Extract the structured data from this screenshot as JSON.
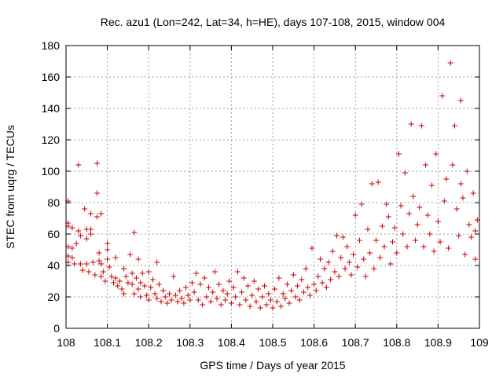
{
  "chart_data": {
    "type": "scatter",
    "title": "Rec. azu1 (Lon=242, Lat=34, h=HE), days 107-108, 2015, window 004",
    "xlabel": "GPS time / Days of year 2015",
    "ylabel": "STEC from uqrg / TECUs",
    "xlim": [
      108,
      109
    ],
    "ylim": [
      0,
      180
    ],
    "xticks": [
      "108",
      "108.1",
      "108.2",
      "108.3",
      "108.4",
      "108.5",
      "108.6",
      "108.7",
      "108.8",
      "108.9",
      "109"
    ],
    "yticks": [
      "0",
      "20",
      "40",
      "60",
      "80",
      "100",
      "120",
      "140",
      "160",
      "180"
    ],
    "grid": true,
    "marker": "plus",
    "color": "#cc0000",
    "series": [
      {
        "points": [
          [
            108.005,
            81
          ],
          [
            108.005,
            67
          ],
          [
            108.005,
            65
          ],
          [
            108.005,
            52
          ],
          [
            108.005,
            46
          ],
          [
            108.005,
            42
          ],
          [
            108.015,
            64
          ],
          [
            108.015,
            51
          ],
          [
            108.015,
            45
          ],
          [
            108.02,
            41
          ],
          [
            108.025,
            54
          ],
          [
            108.03,
            104
          ],
          [
            108.03,
            62
          ],
          [
            108.035,
            59
          ],
          [
            108.035,
            41
          ],
          [
            108.04,
            37
          ],
          [
            108.045,
            76
          ],
          [
            108.05,
            63
          ],
          [
            108.05,
            57
          ],
          [
            108.05,
            41
          ],
          [
            108.055,
            36
          ],
          [
            108.06,
            73
          ],
          [
            108.06,
            63
          ],
          [
            108.06,
            60
          ],
          [
            108.065,
            42
          ],
          [
            108.07,
            34
          ],
          [
            108.075,
            105
          ],
          [
            108.075,
            86
          ],
          [
            108.075,
            71
          ],
          [
            108.08,
            48
          ],
          [
            108.08,
            43
          ],
          [
            108.085,
            73
          ],
          [
            108.085,
            41
          ],
          [
            108.085,
            33
          ],
          [
            108.09,
            36
          ],
          [
            108.095,
            30
          ],
          [
            108.1,
            54
          ],
          [
            108.1,
            50
          ],
          [
            108.1,
            44
          ],
          [
            108.105,
            39
          ],
          [
            108.11,
            33
          ],
          [
            108.115,
            29
          ],
          [
            108.12,
            45
          ],
          [
            108.12,
            32
          ],
          [
            108.125,
            27
          ],
          [
            108.13,
            30
          ],
          [
            108.135,
            25
          ],
          [
            108.14,
            38
          ],
          [
            108.14,
            22
          ],
          [
            108.145,
            33
          ],
          [
            108.15,
            29
          ],
          [
            108.155,
            47
          ],
          [
            108.16,
            35
          ],
          [
            108.16,
            28
          ],
          [
            108.165,
            61
          ],
          [
            108.165,
            22
          ],
          [
            108.17,
            32
          ],
          [
            108.175,
            44
          ],
          [
            108.175,
            25
          ],
          [
            108.18,
            20
          ],
          [
            108.18,
            29
          ],
          [
            108.185,
            35
          ],
          [
            108.19,
            27
          ],
          [
            108.195,
            21
          ],
          [
            108.2,
            36
          ],
          [
            108.2,
            18
          ],
          [
            108.205,
            26
          ],
          [
            108.21,
            31
          ],
          [
            108.215,
            22
          ],
          [
            108.22,
            42
          ],
          [
            108.22,
            19
          ],
          [
            108.225,
            28
          ],
          [
            108.23,
            17
          ],
          [
            108.235,
            24
          ],
          [
            108.24,
            20
          ],
          [
            108.245,
            16
          ],
          [
            108.25,
            22
          ],
          [
            108.255,
            18
          ],
          [
            108.26,
            33
          ],
          [
            108.265,
            21
          ],
          [
            108.27,
            17
          ],
          [
            108.275,
            24
          ],
          [
            108.28,
            19
          ],
          [
            108.285,
            16
          ],
          [
            108.29,
            26
          ],
          [
            108.295,
            21
          ],
          [
            108.3,
            18
          ],
          [
            108.305,
            29
          ],
          [
            108.31,
            23
          ],
          [
            108.315,
            35
          ],
          [
            108.32,
            18
          ],
          [
            108.325,
            28
          ],
          [
            108.33,
            15
          ],
          [
            108.335,
            32
          ],
          [
            108.34,
            20
          ],
          [
            108.345,
            26
          ],
          [
            108.35,
            17
          ],
          [
            108.355,
            23
          ],
          [
            108.36,
            36
          ],
          [
            108.365,
            19
          ],
          [
            108.37,
            28
          ],
          [
            108.375,
            15
          ],
          [
            108.38,
            24
          ],
          [
            108.385,
            18
          ],
          [
            108.39,
            22
          ],
          [
            108.395,
            30
          ],
          [
            108.4,
            16
          ],
          [
            108.405,
            26
          ],
          [
            108.41,
            20
          ],
          [
            108.415,
            36
          ],
          [
            108.42,
            15
          ],
          [
            108.425,
            23
          ],
          [
            108.43,
            32
          ],
          [
            108.435,
            18
          ],
          [
            108.44,
            27
          ],
          [
            108.445,
            14
          ],
          [
            108.45,
            21
          ],
          [
            108.455,
            30
          ],
          [
            108.46,
            17
          ],
          [
            108.465,
            25
          ],
          [
            108.47,
            13
          ],
          [
            108.475,
            20
          ],
          [
            108.48,
            27
          ],
          [
            108.485,
            15
          ],
          [
            108.49,
            22
          ],
          [
            108.495,
            18
          ],
          [
            108.5,
            13
          ],
          [
            108.505,
            25
          ],
          [
            108.51,
            17
          ],
          [
            108.515,
            32
          ],
          [
            108.52,
            14
          ],
          [
            108.525,
            22
          ],
          [
            108.53,
            19
          ],
          [
            108.535,
            28
          ],
          [
            108.54,
            16
          ],
          [
            108.545,
            24
          ],
          [
            108.55,
            34
          ],
          [
            108.555,
            20
          ],
          [
            108.56,
            27
          ],
          [
            108.565,
            18
          ],
          [
            108.57,
            31
          ],
          [
            108.575,
            23
          ],
          [
            108.58,
            38
          ],
          [
            108.585,
            26
          ],
          [
            108.59,
            21
          ],
          [
            108.595,
            51
          ],
          [
            108.6,
            28
          ],
          [
            108.605,
            24
          ],
          [
            108.61,
            33
          ],
          [
            108.615,
            44
          ],
          [
            108.62,
            29
          ],
          [
            108.625,
            38
          ],
          [
            108.63,
            26
          ],
          [
            108.635,
            42
          ],
          [
            108.64,
            31
          ],
          [
            108.645,
            49
          ],
          [
            108.65,
            36
          ],
          [
            108.655,
            59
          ],
          [
            108.66,
            33
          ],
          [
            108.665,
            45
          ],
          [
            108.67,
            58
          ],
          [
            108.675,
            38
          ],
          [
            108.68,
            52
          ],
          [
            108.685,
            42
          ],
          [
            108.69,
            34
          ],
          [
            108.695,
            47
          ],
          [
            108.7,
            72
          ],
          [
            108.705,
            39
          ],
          [
            108.71,
            56
          ],
          [
            108.715,
            79
          ],
          [
            108.72,
            44
          ],
          [
            108.725,
            33
          ],
          [
            108.73,
            63
          ],
          [
            108.735,
            48
          ],
          [
            108.74,
            92
          ],
          [
            108.745,
            38
          ],
          [
            108.75,
            56
          ],
          [
            108.755,
            93
          ],
          [
            108.76,
            45
          ],
          [
            108.765,
            65
          ],
          [
            108.77,
            52
          ],
          [
            108.775,
            79
          ],
          [
            108.78,
            71
          ],
          [
            108.785,
            41
          ],
          [
            108.79,
            55
          ],
          [
            108.795,
            64
          ],
          [
            108.8,
            48
          ],
          [
            108.805,
            111
          ],
          [
            108.81,
            78
          ],
          [
            108.815,
            60
          ],
          [
            108.82,
            99
          ],
          [
            108.825,
            52
          ],
          [
            108.83,
            73
          ],
          [
            108.835,
            130
          ],
          [
            108.84,
            84
          ],
          [
            108.845,
            56
          ],
          [
            108.85,
            66
          ],
          [
            108.855,
            77
          ],
          [
            108.86,
            129
          ],
          [
            108.865,
            52
          ],
          [
            108.87,
            104
          ],
          [
            108.875,
            72
          ],
          [
            108.88,
            60
          ],
          [
            108.885,
            91
          ],
          [
            108.89,
            49
          ],
          [
            108.895,
            111
          ],
          [
            108.9,
            68
          ],
          [
            108.905,
            55
          ],
          [
            108.91,
            148
          ],
          [
            108.915,
            81
          ],
          [
            108.92,
            95
          ],
          [
            108.925,
            51
          ],
          [
            108.93,
            169
          ],
          [
            108.935,
            104
          ],
          [
            108.94,
            129
          ],
          [
            108.945,
            76
          ],
          [
            108.95,
            59
          ],
          [
            108.955,
            145
          ],
          [
            108.96,
            83
          ],
          [
            108.965,
            47
          ],
          [
            108.97,
            100
          ],
          [
            108.975,
            66
          ],
          [
            108.98,
            58
          ],
          [
            108.985,
            86
          ],
          [
            108.99,
            44
          ],
          [
            108.995,
            69
          ],
          [
            108.99,
            62
          ],
          [
            108.955,
            92
          ]
        ]
      }
    ]
  }
}
